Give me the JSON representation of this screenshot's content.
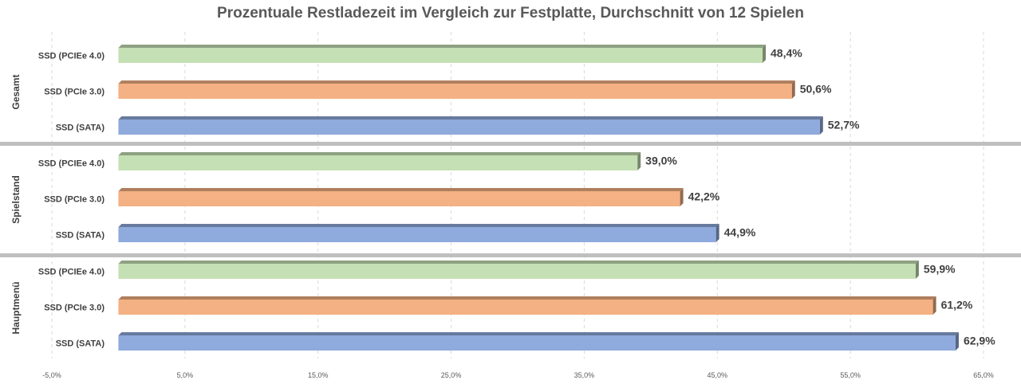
{
  "chart_data": {
    "type": "bar",
    "orientation": "horizontal",
    "title": "Prozentuale Restladezeit im Vergleich zur Festplatte, Durchschnitt von 12 Spielen",
    "xlabel": "",
    "ylabel": "",
    "xlim": [
      -5.0,
      65.0
    ],
    "x_ticks": [
      "-5,0%",
      "5,0%",
      "15,0%",
      "25,0%",
      "35,0%",
      "45,0%",
      "55,0%",
      "65,0%"
    ],
    "grid": "vertical-dashed",
    "legend": "none",
    "groups": [
      {
        "name": "Gesamt",
        "bars": [
          {
            "label": "SSD (PCIEe 4.0)",
            "value": 48.4,
            "value_label": "48,4%",
            "color": "#c5e0b4"
          },
          {
            "label": "SSD (PCIe 3.0)",
            "value": 50.6,
            "value_label": "50,6%",
            "color": "#f4b183"
          },
          {
            "label": "SSD (SATA)",
            "value": 52.7,
            "value_label": "52,7%",
            "color": "#8faadc"
          }
        ]
      },
      {
        "name": "Spielstand",
        "bars": [
          {
            "label": "SSD (PCIEe 4.0)",
            "value": 39.0,
            "value_label": "39,0%",
            "color": "#c5e0b4"
          },
          {
            "label": "SSD (PCIe 3.0)",
            "value": 42.2,
            "value_label": "42,2%",
            "color": "#f4b183"
          },
          {
            "label": "SSD (SATA)",
            "value": 44.9,
            "value_label": "44,9%",
            "color": "#8faadc"
          }
        ]
      },
      {
        "name": "Hauptmenü",
        "bars": [
          {
            "label": "SSD (PCIEe 4.0)",
            "value": 59.9,
            "value_label": "59,9%",
            "color": "#c5e0b4"
          },
          {
            "label": "SSD (PCIe 3.0)",
            "value": 61.2,
            "value_label": "61,2%",
            "color": "#f4b183"
          },
          {
            "label": "SSD (SATA)",
            "value": 62.9,
            "value_label": "62,9%",
            "color": "#8faadc"
          }
        ]
      }
    ]
  }
}
